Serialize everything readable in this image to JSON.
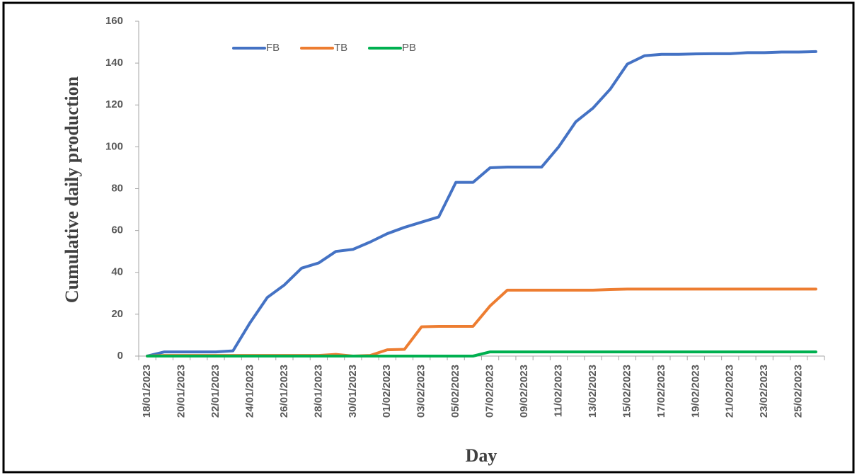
{
  "chart_data": {
    "type": "line",
    "x_label": "Day",
    "y_label": "Cumulative daily production",
    "categories": [
      "18/01/2023",
      null,
      "20/01/2023",
      null,
      "22/01/2023",
      null,
      "24/01/2023",
      null,
      "26/01/2023",
      null,
      "28/01/2023",
      null,
      "30/01/2023",
      null,
      "01/02/2023",
      null,
      "03/02/2023",
      null,
      "05/02/2023",
      null,
      "07/02/2023",
      null,
      "09/02/2023",
      null,
      "11/02/2023",
      null,
      "13/02/2023",
      null,
      "15/02/2023",
      null,
      "17/02/2023",
      null,
      "19/02/2023",
      null,
      "21/02/2023",
      null,
      "23/02/2023",
      null,
      "25/02/2023",
      null
    ],
    "series": [
      {
        "name": "FB",
        "color": "#4472c4",
        "values": [
          0,
          2,
          2,
          2,
          2,
          2.5,
          16,
          28,
          34,
          42,
          44.5,
          50,
          51,
          54.5,
          58.5,
          61.5,
          64,
          66.5,
          83,
          83,
          90,
          90.3,
          90.3,
          90.3,
          100,
          112,
          118.5,
          127.5,
          139.5,
          143.5,
          144.2,
          144.2,
          144.4,
          144.5,
          144.5,
          145,
          145,
          145.3,
          145.3,
          145.5
        ]
      },
      {
        "name": "TB",
        "color": "#ed7d31",
        "values": [
          0,
          0.3,
          0.3,
          0.3,
          0.3,
          0.3,
          0.3,
          0.3,
          0.3,
          0.3,
          0.3,
          0.8,
          0,
          0.3,
          3,
          3.2,
          14,
          14.2,
          14.2,
          14.2,
          24,
          31.5,
          31.5,
          31.5,
          31.5,
          31.5,
          31.5,
          31.8,
          32,
          32,
          32,
          32,
          32,
          32,
          32,
          32,
          32,
          32,
          32,
          32
        ]
      },
      {
        "name": "PB",
        "color": "#00b050",
        "values": [
          0,
          0,
          0,
          0,
          0,
          0,
          0,
          0,
          0,
          0,
          0,
          0,
          0,
          0,
          0,
          0,
          0,
          0,
          0,
          0,
          2,
          2,
          2,
          2,
          2,
          2,
          2,
          2,
          2,
          2,
          2,
          2,
          2,
          2,
          2,
          2,
          2,
          2,
          2,
          2
        ]
      }
    ],
    "ylim": [
      0,
      160
    ],
    "yticks": [
      0,
      20,
      40,
      60,
      80,
      100,
      120,
      140,
      160
    ],
    "grid": false,
    "legend": "top"
  }
}
